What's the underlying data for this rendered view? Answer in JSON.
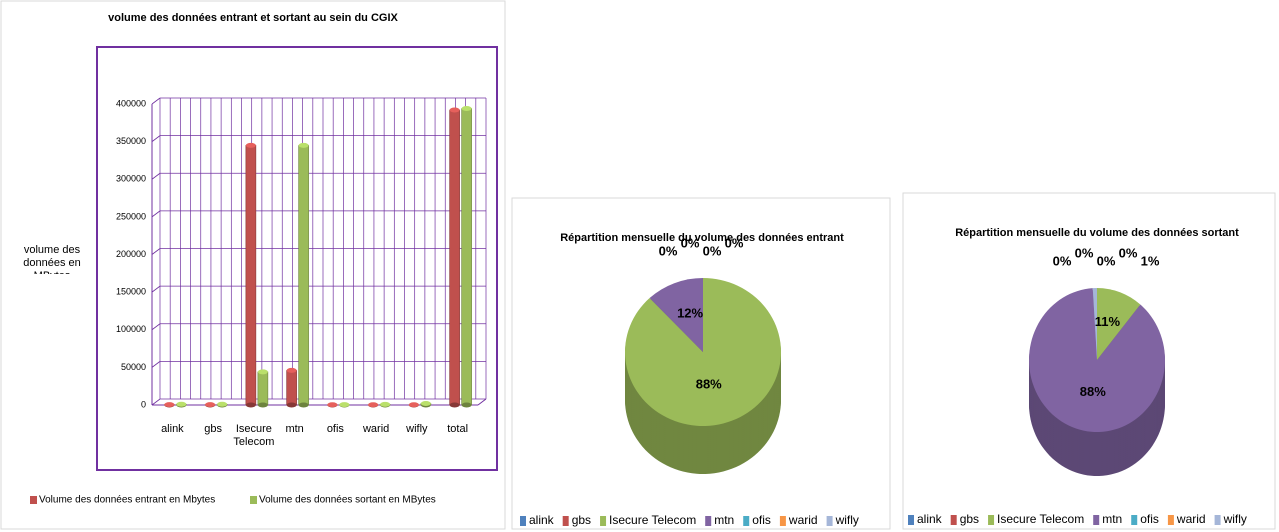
{
  "chart_data": [
    {
      "type": "bar",
      "title": "volume des données entrant et sortant au sein du CGIX",
      "y_label": "volume des données en MBytes",
      "categories": [
        "alink",
        "gbs",
        "Isecure Telecom",
        "mtn",
        "ofis",
        "warid",
        "wifly",
        "total"
      ],
      "series": [
        {
          "name": "Volume des données entrant en Mbytes",
          "color": "#c0504d",
          "values": [
            500,
            500,
            345000,
            46000,
            300,
            300,
            300,
            392000
          ]
        },
        {
          "name": "Volume des données sortant en MBytes",
          "color": "#9bbb59",
          "values": [
            1000,
            1000,
            44000,
            345000,
            500,
            800,
            2000,
            394000
          ]
        }
      ],
      "ylim": [
        0,
        400000
      ],
      "yticks": [
        0,
        50000,
        100000,
        150000,
        200000,
        250000,
        300000,
        350000,
        400000
      ],
      "grid": true,
      "legend": "bottom"
    },
    {
      "type": "pie",
      "title": "Répartition mensuelle du volume des données entrant",
      "categories": [
        "alink",
        "gbs",
        "Isecure Telecom",
        "mtn",
        "ofis",
        "warid",
        "wifly"
      ],
      "colors": [
        "#4f81bd",
        "#c0504d",
        "#9bbb59",
        "#8064a2",
        "#4bacc6",
        "#f79646",
        "#a5b6d8"
      ],
      "values": [
        0,
        0,
        88,
        12,
        0,
        0,
        0
      ],
      "value_labels": [
        "0%",
        "0%",
        "88%",
        "12%",
        "0%",
        "0%",
        null
      ],
      "legend": "bottom"
    },
    {
      "type": "pie",
      "title": "Répartition mensuelle du volume des données sortant",
      "categories": [
        "alink",
        "gbs",
        "Isecure Telecom",
        "mtn",
        "ofis",
        "warid",
        "wifly"
      ],
      "colors": [
        "#4f81bd",
        "#c0504d",
        "#9bbb59",
        "#8064a2",
        "#4bacc6",
        "#f79646",
        "#a5b6d8"
      ],
      "values": [
        0,
        0,
        11,
        88,
        0,
        0,
        1
      ],
      "value_labels": [
        "0%",
        "0%",
        "11%",
        "88%",
        "0%",
        "0%",
        "1%"
      ],
      "legend": "bottom"
    }
  ]
}
